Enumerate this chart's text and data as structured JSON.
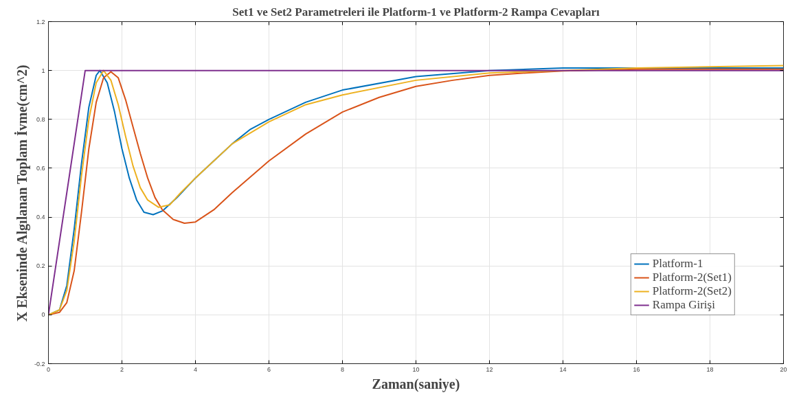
{
  "chart_data": {
    "type": "line",
    "title": "Set1 ve Set2 Parametreleri ile Platform-1 ve Platform-2 Rampa Cevapları",
    "xlabel": "Zaman(saniye)",
    "ylabel": "X Ekseninde Algılanan Toplam İvme(cm^2)",
    "xlim": [
      0,
      20
    ],
    "ylim": [
      -0.2,
      1.2
    ],
    "xticks": [
      0,
      2,
      4,
      6,
      8,
      10,
      12,
      14,
      16,
      18,
      20
    ],
    "yticks": [
      -0.2,
      0,
      0.2,
      0.4,
      0.6,
      0.8,
      1,
      1.2
    ],
    "grid": true,
    "legend": "bottom right",
    "line_style": "solid",
    "series": [
      {
        "name": "Platform-1",
        "color": "#0072bd",
        "x": [
          0,
          0.3,
          0.5,
          0.7,
          0.9,
          1.1,
          1.3,
          1.4,
          1.6,
          1.8,
          2.0,
          2.2,
          2.4,
          2.6,
          2.85,
          3.1,
          3.5,
          4,
          4.5,
          5,
          5.5,
          6,
          7,
          8,
          10,
          12,
          14,
          16,
          20
        ],
        "values": [
          0,
          0.02,
          0.12,
          0.35,
          0.62,
          0.85,
          0.98,
          1.0,
          0.95,
          0.83,
          0.68,
          0.56,
          0.47,
          0.42,
          0.41,
          0.425,
          0.48,
          0.56,
          0.63,
          0.7,
          0.76,
          0.8,
          0.87,
          0.92,
          0.975,
          1.0,
          1.01,
          1.01,
          1.01
        ]
      },
      {
        "name": "Platform-2(Set1)",
        "color": "#d95319",
        "x": [
          0,
          0.3,
          0.5,
          0.7,
          0.9,
          1.1,
          1.3,
          1.5,
          1.7,
          1.9,
          2.1,
          2.3,
          2.5,
          2.7,
          2.9,
          3.1,
          3.4,
          3.7,
          4.0,
          4.5,
          5,
          6,
          7,
          8,
          9,
          10,
          11,
          12,
          13,
          14,
          16,
          20
        ],
        "values": [
          0,
          0.01,
          0.05,
          0.18,
          0.42,
          0.68,
          0.87,
          0.97,
          0.995,
          0.97,
          0.88,
          0.77,
          0.66,
          0.56,
          0.48,
          0.43,
          0.39,
          0.375,
          0.38,
          0.43,
          0.5,
          0.63,
          0.74,
          0.83,
          0.89,
          0.935,
          0.96,
          0.98,
          0.99,
          0.998,
          1.005,
          1.005
        ]
      },
      {
        "name": "Platform-2(Set2)",
        "color": "#edb120",
        "x": [
          0,
          0.3,
          0.5,
          0.7,
          0.9,
          1.1,
          1.3,
          1.5,
          1.7,
          1.9,
          2.1,
          2.3,
          2.5,
          2.7,
          3.0,
          3.3,
          3.6,
          4,
          5,
          6,
          7,
          8,
          10,
          12,
          14,
          16,
          20
        ],
        "values": [
          0,
          0.02,
          0.1,
          0.3,
          0.57,
          0.8,
          0.95,
          1.0,
          0.96,
          0.86,
          0.73,
          0.61,
          0.52,
          0.47,
          0.44,
          0.45,
          0.5,
          0.56,
          0.7,
          0.79,
          0.86,
          0.9,
          0.96,
          0.99,
          1.0,
          1.01,
          1.02
        ]
      },
      {
        "name": "Rampa Girişi",
        "color": "#7e2f8e",
        "x": [
          0,
          1,
          20
        ],
        "values": [
          0,
          1,
          1
        ]
      }
    ]
  }
}
